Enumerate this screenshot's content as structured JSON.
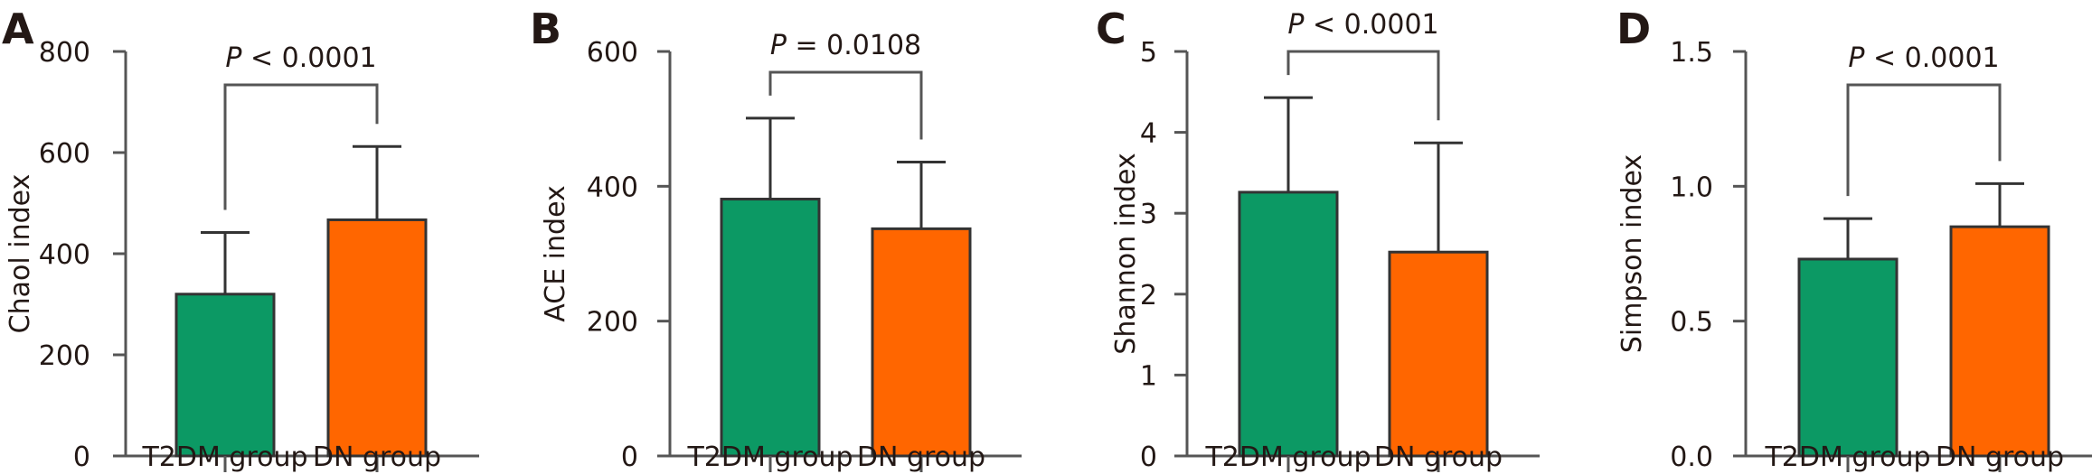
{
  "colors": {
    "T2DM": "#0C9964",
    "DN": "#FF6600",
    "axis": "#555555",
    "text": "#231815"
  },
  "chart_data": [
    {
      "type": "bar",
      "panel": "A",
      "title": "",
      "xlabel": "",
      "ylabel": "Chaol index",
      "categories": [
        "T2DM group",
        "DN group"
      ],
      "values": [
        320,
        467
      ],
      "error_upper": [
        442,
        612
      ],
      "ylim": [
        0,
        800
      ],
      "yticks": [
        "0",
        "200",
        "400",
        "600",
        "800"
      ],
      "ytick_values": [
        0,
        200,
        400,
        600,
        800
      ],
      "significance": {
        "p_label": "P",
        "p_rest": " < 0.0001"
      },
      "grid": false,
      "legend": "none"
    },
    {
      "type": "bar",
      "panel": "B",
      "title": "",
      "xlabel": "",
      "ylabel": "ACE index",
      "categories": [
        "T2DM group",
        "DN group"
      ],
      "values": [
        381,
        337
      ],
      "error_upper": [
        501,
        436
      ],
      "ylim": [
        0,
        600
      ],
      "yticks": [
        "0",
        "200",
        "400",
        "600"
      ],
      "ytick_values": [
        0,
        200,
        400,
        600
      ],
      "significance": {
        "p_label": "P",
        "p_rest": " = 0.0108"
      },
      "grid": false,
      "legend": "none"
    },
    {
      "type": "bar",
      "panel": "C",
      "title": "",
      "xlabel": "",
      "ylabel": "Shannon index",
      "categories": [
        "T2DM group",
        "DN group"
      ],
      "values": [
        3.26,
        2.52
      ],
      "error_upper": [
        4.43,
        3.87
      ],
      "ylim": [
        0,
        5
      ],
      "yticks": [
        "0",
        "1",
        "2",
        "3",
        "4",
        "5"
      ],
      "ytick_values": [
        0,
        1,
        2,
        3,
        4,
        5
      ],
      "significance": {
        "p_label": "P",
        "p_rest": " < 0.0001"
      },
      "grid": false,
      "legend": "none"
    },
    {
      "type": "bar",
      "panel": "D",
      "title": "",
      "xlabel": "",
      "ylabel": "Simpson index",
      "categories": [
        "T2DM group",
        "DN group"
      ],
      "values": [
        0.73,
        0.85
      ],
      "error_upper": [
        0.88,
        1.01
      ],
      "ylim": [
        0,
        1.5
      ],
      "yticks": [
        "0.0",
        "0.5",
        "1.0",
        "1.5"
      ],
      "ytick_values": [
        0,
        0.5,
        1.0,
        1.5
      ],
      "significance": {
        "p_label": "P",
        "p_rest": " < 0.0001"
      },
      "grid": false,
      "legend": "none"
    }
  ]
}
